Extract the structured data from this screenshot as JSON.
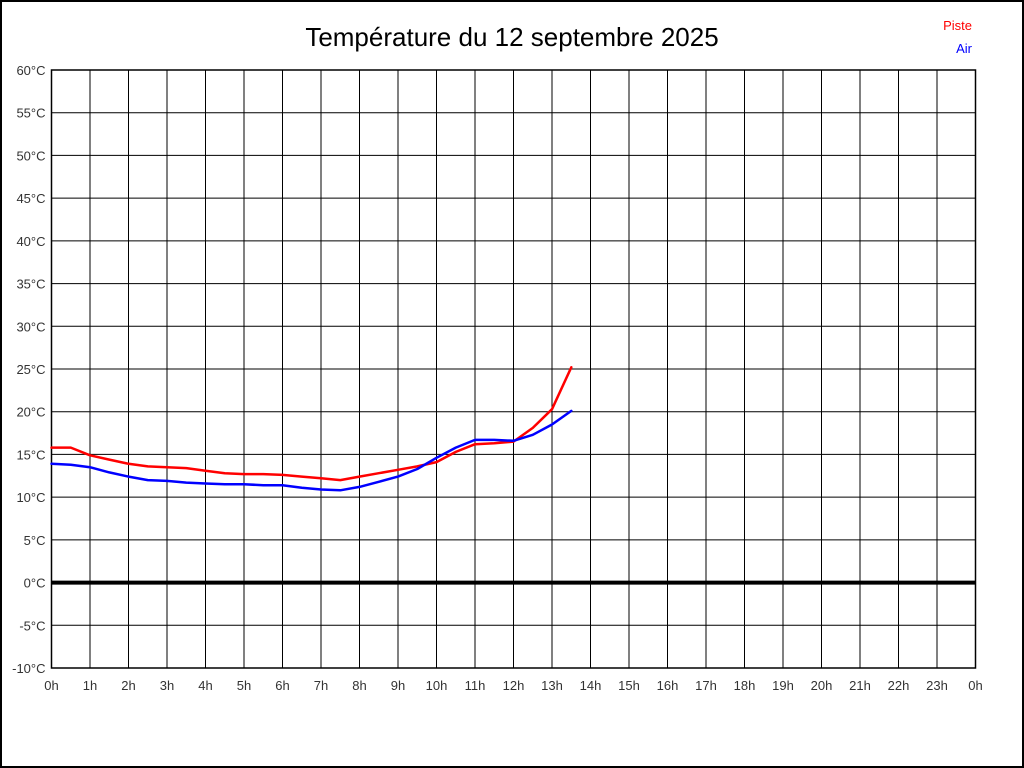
{
  "chart": {
    "title": "Température du 12 septembre 2025"
  },
  "legend": {
    "items": [
      {
        "label": "Piste",
        "color": "#ff0000"
      },
      {
        "label": "Air",
        "color": "#0000ff"
      }
    ]
  },
  "chart_data": {
    "type": "line",
    "title": "Température du 12 septembre 2025",
    "xlabel": "",
    "ylabel": "",
    "xlim": [
      0,
      24
    ],
    "ylim": [
      -10,
      60
    ],
    "grid": true,
    "grid_color": "#000000",
    "zero_line": {
      "value": 0,
      "color": "#000000",
      "width": 4
    },
    "x_ticks": {
      "values": [
        0,
        1,
        2,
        3,
        4,
        5,
        6,
        7,
        8,
        9,
        10,
        11,
        12,
        13,
        14,
        15,
        16,
        17,
        18,
        19,
        20,
        21,
        22,
        23,
        24
      ],
      "labels": [
        "0h",
        "1h",
        "2h",
        "3h",
        "4h",
        "5h",
        "6h",
        "7h",
        "8h",
        "9h",
        "10h",
        "11h",
        "12h",
        "13h",
        "14h",
        "15h",
        "16h",
        "17h",
        "18h",
        "19h",
        "20h",
        "21h",
        "22h",
        "23h",
        "0h"
      ]
    },
    "y_ticks": {
      "values": [
        60,
        55,
        50,
        45,
        40,
        35,
        30,
        25,
        20,
        15,
        10,
        5,
        0,
        -5,
        -10
      ],
      "labels": [
        "60°C",
        "55°C",
        "50°C",
        "45°C",
        "40°C",
        "35°C",
        "30°C",
        "25°C",
        "20°C",
        "15°C",
        "10°C",
        "5°C",
        "0°C",
        "-5°C",
        "-10°C"
      ]
    },
    "x": [
      0,
      0.5,
      1,
      1.5,
      2,
      2.5,
      3,
      3.5,
      4,
      4.5,
      5,
      5.5,
      6,
      6.5,
      7,
      7.5,
      8,
      8.5,
      9,
      9.5,
      10,
      10.5,
      11,
      11.5,
      12,
      12.5,
      13,
      13.5
    ],
    "series": [
      {
        "name": "Piste",
        "color": "#ff0000",
        "values": [
          15.8,
          15.8,
          14.9,
          14.4,
          13.9,
          13.6,
          13.5,
          13.4,
          13.1,
          12.8,
          12.7,
          12.7,
          12.6,
          12.4,
          12.2,
          12.0,
          12.4,
          12.8,
          13.2,
          13.6,
          14.1,
          15.3,
          16.2,
          16.3,
          16.5,
          18.1,
          20.3,
          25.2
        ]
      },
      {
        "name": "Air",
        "color": "#0000ff",
        "values": [
          13.9,
          13.8,
          13.5,
          12.9,
          12.4,
          12.0,
          11.9,
          11.7,
          11.6,
          11.5,
          11.5,
          11.4,
          11.4,
          11.1,
          10.9,
          10.8,
          11.2,
          11.8,
          12.4,
          13.3,
          14.6,
          15.8,
          16.7,
          16.7,
          16.6,
          17.3,
          18.5,
          20.1
        ]
      }
    ],
    "legend_position": "top-right"
  }
}
